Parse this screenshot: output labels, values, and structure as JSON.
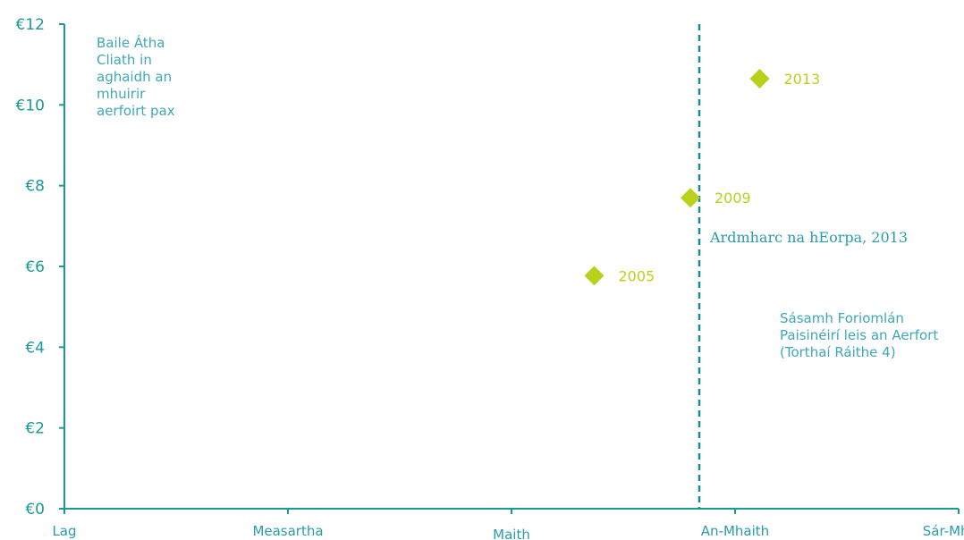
{
  "chart_data": {
    "type": "scatter",
    "title": "",
    "y_axis": {
      "label": "Baile Átha\nCliath in\naghaidh an\nmhuirir\naerfoirt pax",
      "range": [
        0,
        12
      ],
      "ticks": [
        0,
        2,
        4,
        6,
        8,
        10,
        12
      ],
      "tick_labels": [
        "€0",
        "€2",
        "€4",
        "€6",
        "€8",
        "€10",
        "€12"
      ]
    },
    "x_axis": {
      "label": "Sásamh Foriomlán\nPaisinéirí leis an Aerfort\n(Torthaí Ráithe 4)",
      "categories": [
        "Lag",
        "Measartha",
        "Maith",
        "An-Mhaith",
        "Sár-Mhaith"
      ],
      "range": [
        1,
        5
      ]
    },
    "points": [
      {
        "label": "2005",
        "x": 3.37,
        "y": 5.77
      },
      {
        "label": "2009",
        "x": 3.8,
        "y": 7.7
      },
      {
        "label": "2013",
        "x": 4.11,
        "y": 10.65
      }
    ],
    "benchmark": {
      "label": "Ardmharc na hEorpa, 2013",
      "x": 3.84
    },
    "grid": false,
    "colors": {
      "axis": "#1a9a96",
      "points": "#b9d11a",
      "point_labels": "#b9d11a",
      "benchmark": "#1a8a8a",
      "notes": "#3fa7b5"
    }
  }
}
